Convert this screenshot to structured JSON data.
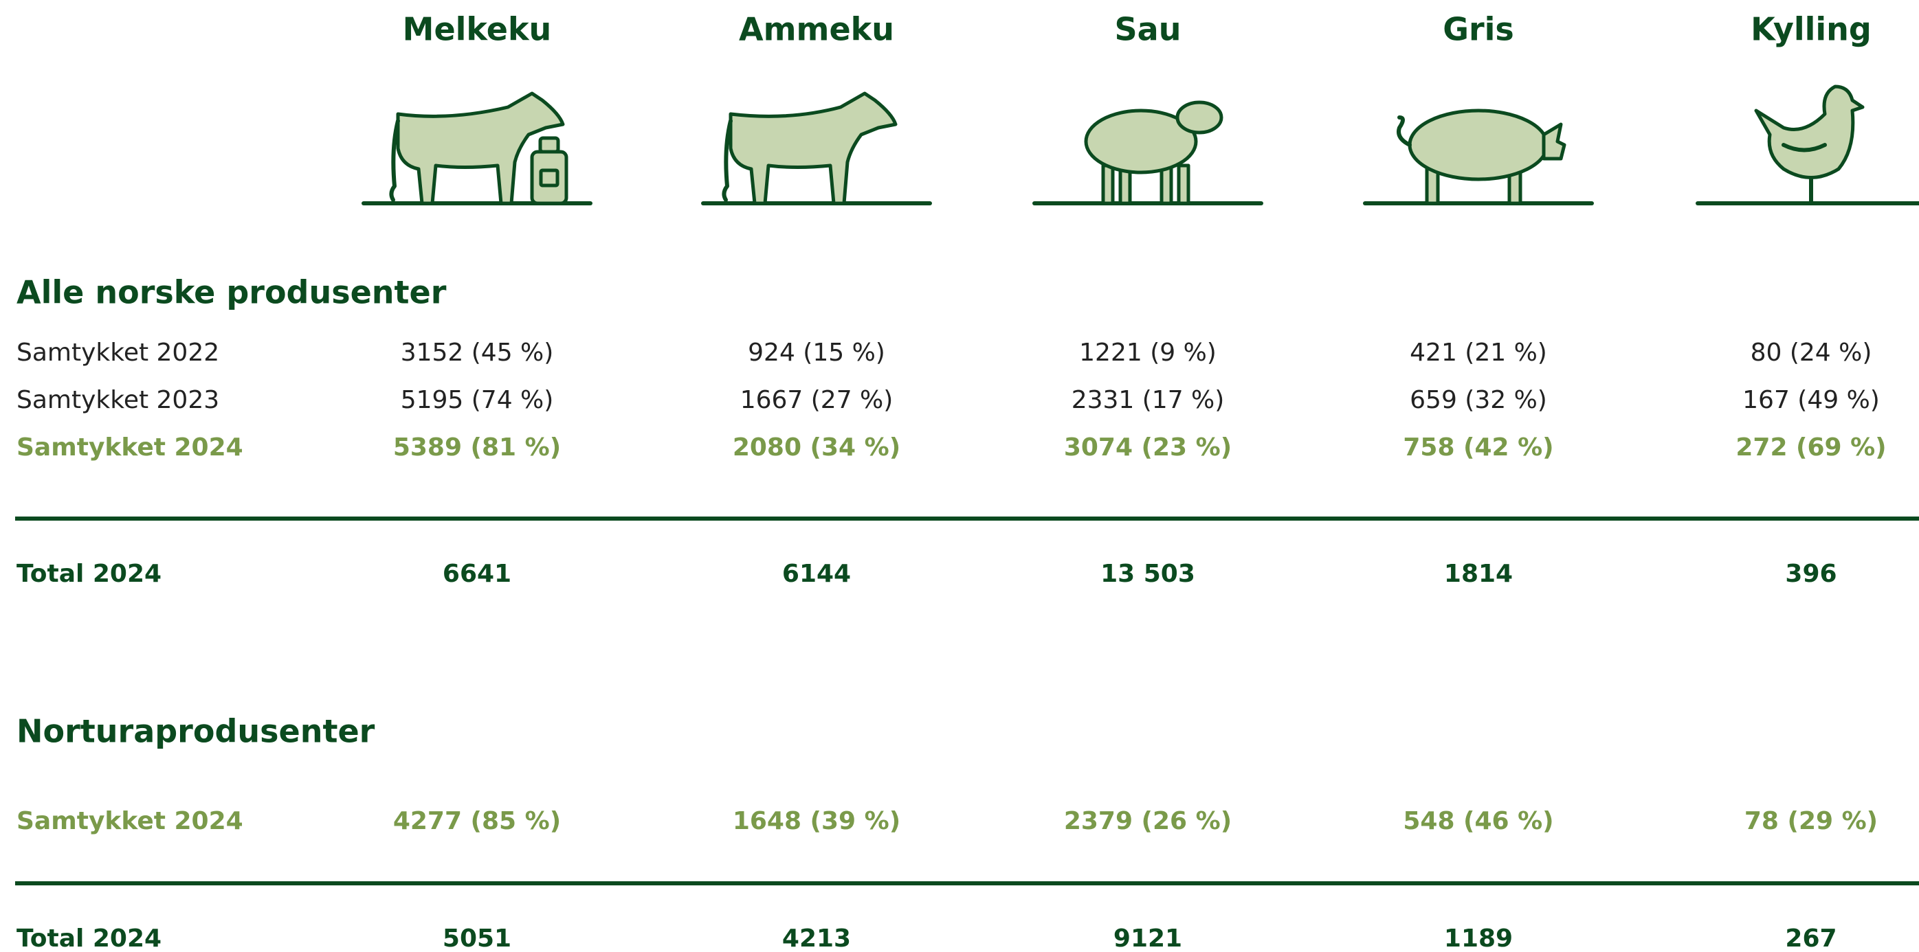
{
  "columns": [
    "Melkeku",
    "Ammeku",
    "Sau",
    "Gris",
    "Kylling"
  ],
  "sections": [
    {
      "title": "Alle norske produsenter",
      "rows": [
        {
          "label": "Samtykket 2022",
          "cells": [
            "3152 (45 %)",
            "924 (15 %)",
            "1221 (9 %)",
            "421 (21 %)",
            "80 (24 %)"
          ]
        },
        {
          "label": "Samtykket 2023",
          "cells": [
            "5195 (74 %)",
            "1667 (27 %)",
            "2331 (17 %)",
            "659 (32 %)",
            "167 (49 %)"
          ]
        },
        {
          "label": "Samtykket 2024",
          "cells": [
            "5389 (81 %)",
            "2080 (34 %)",
            "3074 (23 %)",
            "758 (42 %)",
            "272 (69 %)"
          ]
        }
      ],
      "total": {
        "label": "Total 2024",
        "cells": [
          "6641",
          "6144",
          "13 503",
          "1814",
          "396"
        ]
      }
    },
    {
      "title": "Norturaprodusenter",
      "rows": [
        {
          "label": "Samtykket 2024",
          "cells": [
            "4277 (85 %)",
            "1648 (39 %)",
            "2379 (26 %)",
            "548 (46 %)",
            "78 (29 %)"
          ]
        }
      ],
      "total": {
        "label": "Total 2024",
        "cells": [
          "5051",
          "4213",
          "9121",
          "1189",
          "267"
        ]
      }
    }
  ]
}
